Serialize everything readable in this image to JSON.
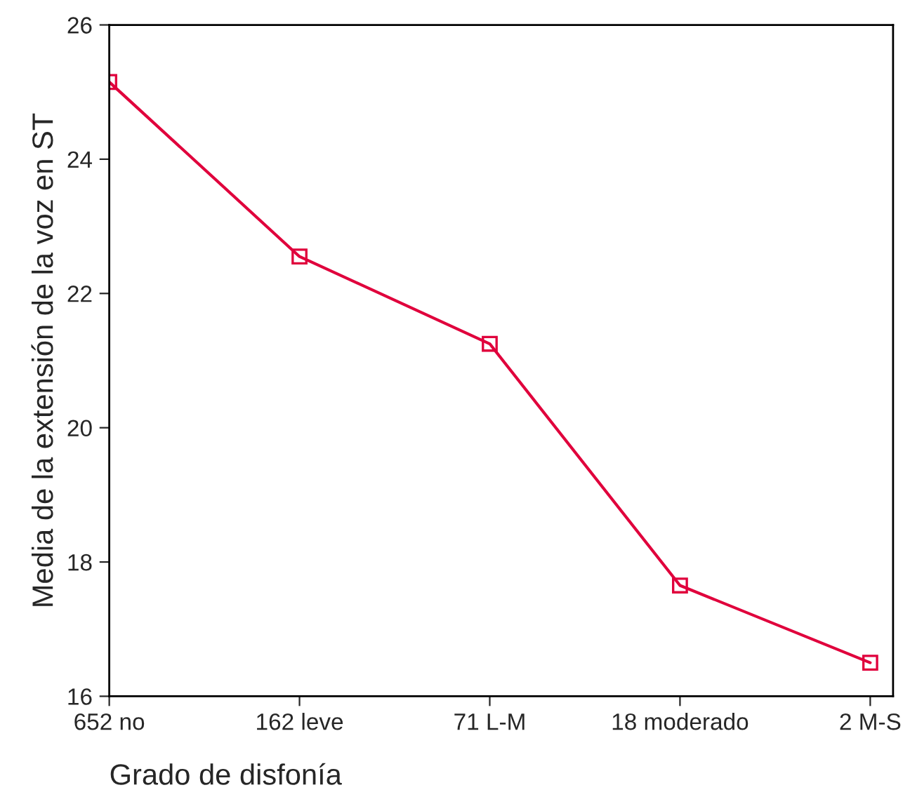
{
  "chart_data": {
    "type": "line",
    "xlabel": "Grado de disfonía",
    "ylabel": "Media de la extensión de la voz en ST",
    "categories": [
      "652 no",
      "162 leve",
      "71 L-M",
      "18 moderado",
      "2 M-S"
    ],
    "series": [
      {
        "color": "#e0003c",
        "values": [
          25.15,
          22.55,
          21.25,
          17.65,
          16.5
        ]
      }
    ],
    "ylim": [
      16,
      26
    ],
    "yticks": [
      16,
      18,
      20,
      22,
      24,
      26
    ],
    "marker": "square",
    "line_style": "solid",
    "grid": false,
    "legend": false
  }
}
